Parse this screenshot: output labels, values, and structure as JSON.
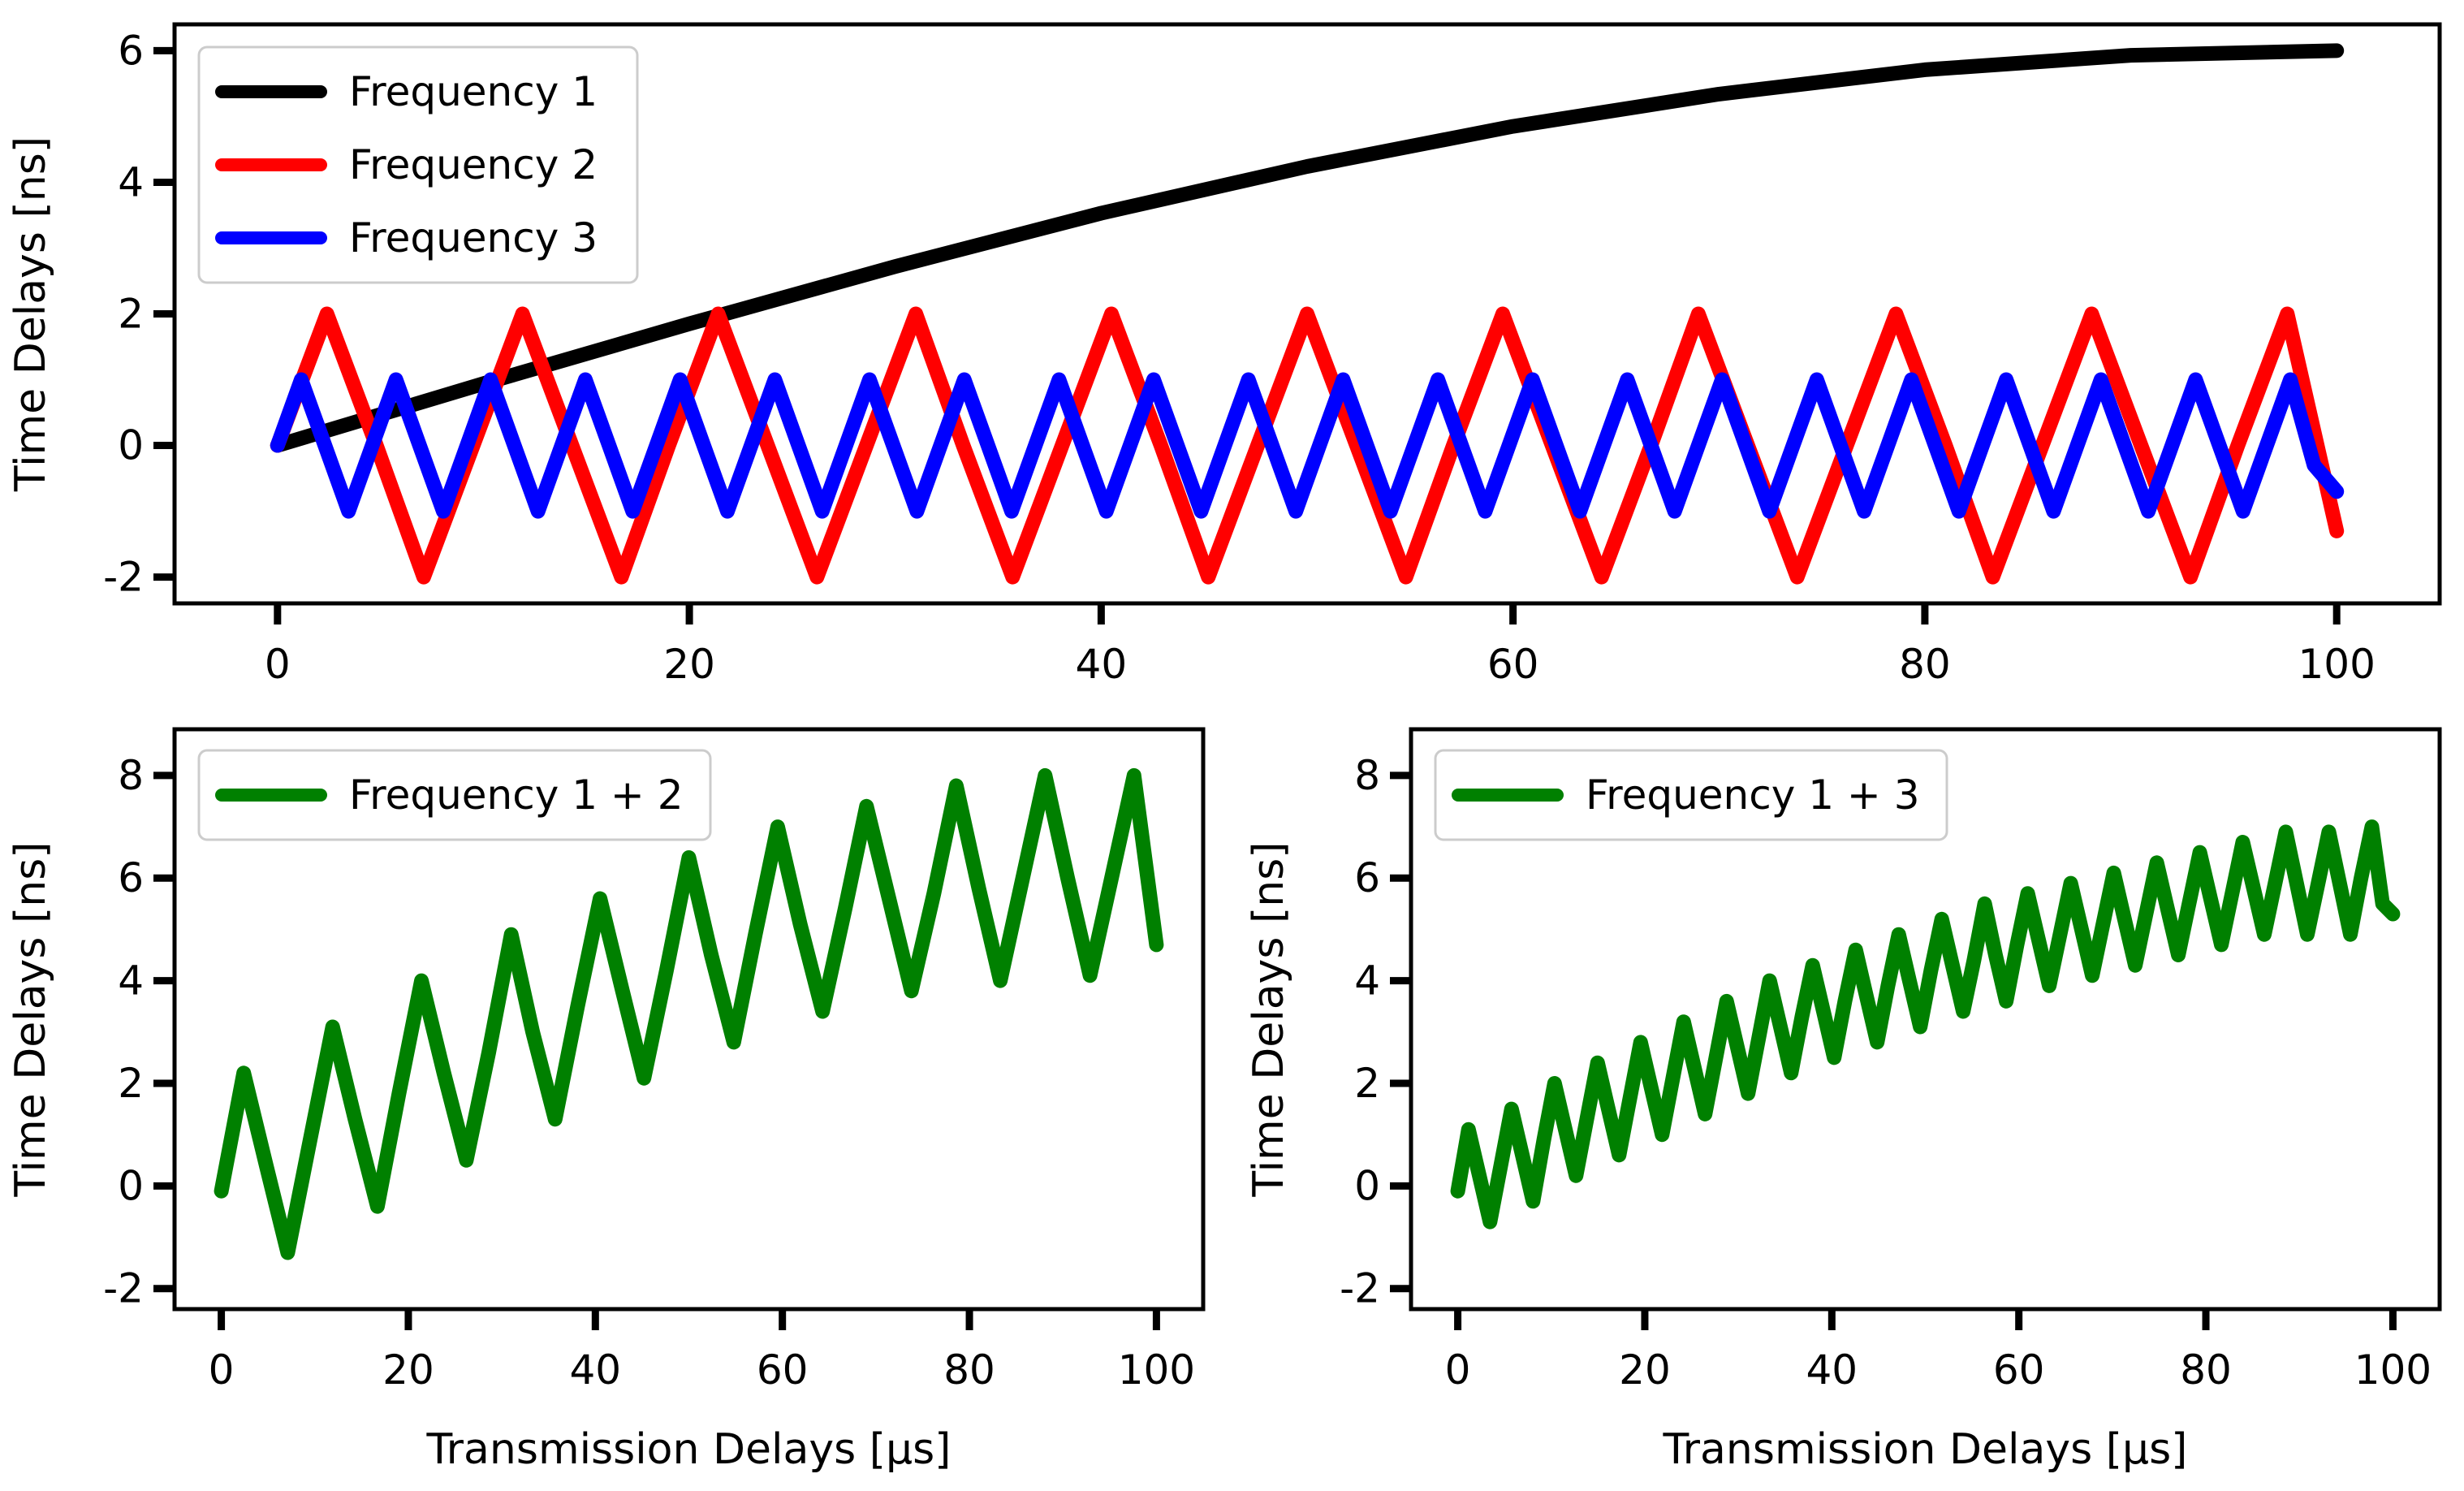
{
  "chart_data": [
    {
      "type": "line",
      "title": "",
      "xlabel": "Transmission Delays [µs]",
      "ylabel": "Time Delays [ns]",
      "xlim": [
        -5,
        105
      ],
      "ylim": [
        -2.4,
        6.4
      ],
      "xticks": [
        0,
        20,
        40,
        60,
        80,
        100
      ],
      "yticks": [
        -2,
        0,
        2,
        4,
        6
      ],
      "xtick_labels": [
        "0",
        "20",
        "40",
        "60",
        "80",
        "100"
      ],
      "ytick_labels": [
        "-2",
        "0",
        "2",
        "4",
        "6"
      ],
      "legend_position": "upper-left",
      "series": [
        {
          "name": "Frequency 1",
          "color": "#000000",
          "x": [
            0,
            10,
            20,
            30,
            40,
            50,
            60,
            70,
            80,
            90,
            100
          ],
          "y": [
            0.0,
            0.94,
            1.85,
            2.72,
            3.53,
            4.24,
            4.85,
            5.34,
            5.71,
            5.93,
            6.0
          ]
        },
        {
          "name": "Frequency 2",
          "color": "#ff0000",
          "x": [
            0,
            2.4,
            4.8,
            7.1,
            9.5,
            11.9,
            14.3,
            16.7,
            19.0,
            21.4,
            23.8,
            26.2,
            28.6,
            31.0,
            33.3,
            35.7,
            38.1,
            40.5,
            42.9,
            45.2,
            47.6,
            50.0,
            52.4,
            54.8,
            57.1,
            59.5,
            61.9,
            64.3,
            66.7,
            69.0,
            71.4,
            73.8,
            76.2,
            78.6,
            81.0,
            83.3,
            85.7,
            88.1,
            90.5,
            92.9,
            95.2,
            97.6,
            100
          ],
          "y": [
            0,
            2,
            0,
            -2,
            0,
            2,
            0,
            -2,
            0,
            2,
            0,
            -2,
            0,
            2,
            0,
            -2,
            0,
            2,
            0,
            -2,
            0,
            2,
            0,
            -2,
            0,
            2,
            0,
            -2,
            0,
            2,
            0,
            -2,
            0,
            2,
            0,
            -2,
            0,
            2,
            0,
            -2,
            0,
            2,
            -1.3
          ]
        },
        {
          "name": "Frequency 3",
          "color": "#0000ff",
          "x": [
            0,
            1.15,
            2.3,
            3.45,
            4.6,
            5.75,
            6.9,
            8.05,
            9.2,
            10.35,
            11.5,
            12.65,
            13.8,
            14.95,
            16.1,
            17.25,
            18.4,
            19.55,
            20.7,
            21.85,
            23.0,
            24.15,
            25.3,
            26.45,
            27.6,
            28.75,
            29.9,
            31.05,
            32.2,
            33.35,
            34.5,
            35.65,
            36.8,
            37.95,
            39.1,
            40.25,
            41.4,
            42.55,
            43.7,
            44.85,
            46.0,
            47.15,
            48.3,
            49.45,
            50.6,
            51.75,
            52.9,
            54.05,
            55.2,
            56.35,
            57.5,
            58.65,
            59.8,
            60.95,
            62.1,
            63.25,
            64.4,
            65.55,
            66.7,
            67.85,
            69.0,
            70.15,
            71.3,
            72.45,
            73.6,
            74.75,
            75.9,
            77.05,
            78.2,
            79.35,
            80.5,
            81.65,
            82.8,
            83.95,
            85.1,
            86.25,
            87.4,
            88.55,
            89.7,
            90.85,
            92.0,
            93.15,
            94.3,
            95.45,
            96.6,
            97.75,
            98.9,
            100
          ],
          "y": [
            0,
            1,
            0,
            -1,
            0,
            1,
            0,
            -1,
            0,
            1,
            0,
            -1,
            0,
            1,
            0,
            -1,
            0,
            1,
            0,
            -1,
            0,
            1,
            0,
            -1,
            0,
            1,
            0,
            -1,
            0,
            1,
            0,
            -1,
            0,
            1,
            0,
            -1,
            0,
            1,
            0,
            -1,
            0,
            1,
            0,
            -1,
            0,
            1,
            0,
            -1,
            0,
            1,
            0,
            -1,
            0,
            1,
            0,
            -1,
            0,
            1,
            0,
            -1,
            0,
            1,
            0,
            -1,
            0,
            1,
            0,
            -1,
            0,
            1,
            0,
            -1,
            0,
            1,
            0,
            -1,
            0,
            1,
            0,
            -1,
            0,
            1,
            0,
            -1,
            0,
            1,
            -0.3,
            -0.7
          ]
        }
      ]
    },
    {
      "type": "line",
      "title": "",
      "xlabel": "Transmission Delays [µs]",
      "ylabel": "Time Delays [ns]",
      "xlim": [
        -5,
        105
      ],
      "ylim": [
        -2.4,
        8.9
      ],
      "xticks": [
        0,
        20,
        40,
        60,
        80,
        100
      ],
      "yticks": [
        -2,
        0,
        2,
        4,
        6,
        8
      ],
      "xtick_labels": [
        "0",
        "20",
        "40",
        "60",
        "80",
        "100"
      ],
      "ytick_labels": [
        "-2",
        "0",
        "2",
        "4",
        "6",
        "8"
      ],
      "legend_position": "upper-left",
      "series": [
        {
          "name": "Frequency 1 + 2",
          "color": "#008000",
          "x": [
            0,
            2.4,
            4.8,
            7.1,
            9.5,
            11.9,
            14.3,
            16.7,
            19.0,
            21.4,
            23.8,
            26.2,
            28.6,
            31.0,
            33.3,
            35.7,
            38.1,
            40.5,
            42.9,
            45.2,
            47.6,
            50.0,
            52.4,
            54.8,
            57.1,
            59.5,
            61.9,
            64.3,
            66.7,
            69.0,
            71.4,
            73.8,
            76.2,
            78.6,
            81.0,
            83.3,
            85.7,
            88.1,
            90.5,
            92.9,
            95.2,
            97.6,
            100
          ],
          "y": [
            -0.1,
            2.2,
            0.4,
            -1.3,
            0.9,
            3.1,
            1.3,
            -0.4,
            1.8,
            4.0,
            2.2,
            0.5,
            2.6,
            4.9,
            3.0,
            1.3,
            3.5,
            5.6,
            3.8,
            2.1,
            4.2,
            6.4,
            4.5,
            2.8,
            4.9,
            7.0,
            5.1,
            3.4,
            5.4,
            7.4,
            5.6,
            3.8,
            5.7,
            7.8,
            5.8,
            4.0,
            6.0,
            8.0,
            6.0,
            4.1,
            6.0,
            8.0,
            4.7
          ]
        }
      ]
    },
    {
      "type": "line",
      "title": "",
      "xlabel": "Transmission Delays [µs]",
      "ylabel": "Time Delays [ns]",
      "xlim": [
        -5,
        105
      ],
      "ylim": [
        -2.4,
        8.9
      ],
      "xticks": [
        0,
        20,
        40,
        60,
        80,
        100
      ],
      "yticks": [
        -2,
        0,
        2,
        4,
        6,
        8
      ],
      "xtick_labels": [
        "0",
        "20",
        "40",
        "60",
        "80",
        "100"
      ],
      "ytick_labels": [
        "-2",
        "0",
        "2",
        "4",
        "6",
        "8"
      ],
      "legend_position": "upper-left",
      "series": [
        {
          "name": "Frequency 1 + 3",
          "color": "#008000",
          "x": [
            0,
            1.15,
            2.3,
            3.45,
            4.6,
            5.75,
            6.9,
            8.05,
            9.2,
            10.35,
            11.5,
            12.65,
            13.8,
            14.95,
            16.1,
            17.25,
            18.4,
            19.55,
            20.7,
            21.85,
            23.0,
            24.15,
            25.3,
            26.45,
            27.6,
            28.75,
            29.9,
            31.05,
            32.2,
            33.35,
            34.5,
            35.65,
            36.8,
            37.95,
            39.1,
            40.25,
            41.4,
            42.55,
            43.7,
            44.85,
            46.0,
            47.15,
            48.3,
            49.45,
            50.6,
            51.75,
            52.9,
            54.05,
            55.2,
            56.35,
            57.5,
            58.65,
            59.8,
            60.95,
            62.1,
            63.25,
            64.4,
            65.55,
            66.7,
            67.85,
            69.0,
            70.15,
            71.3,
            72.45,
            73.6,
            74.75,
            75.9,
            77.05,
            78.2,
            79.35,
            80.5,
            81.65,
            82.8,
            83.95,
            85.1,
            86.25,
            87.4,
            88.55,
            89.7,
            90.85,
            92.0,
            93.15,
            94.3,
            95.45,
            96.6,
            97.75,
            98.9,
            100
          ],
          "y": [
            -0.1,
            1.1,
            0.2,
            -0.7,
            0.4,
            1.5,
            0.6,
            -0.3,
            0.9,
            2.0,
            1.1,
            0.2,
            1.3,
            2.4,
            1.5,
            0.6,
            1.7,
            2.8,
            1.9,
            1.0,
            2.1,
            3.2,
            2.3,
            1.4,
            2.5,
            3.6,
            2.7,
            1.8,
            2.9,
            4.0,
            3.1,
            2.2,
            3.3,
            4.3,
            3.4,
            2.5,
            3.6,
            4.6,
            3.7,
            2.8,
            3.9,
            4.9,
            4.0,
            3.1,
            4.2,
            5.2,
            4.3,
            3.4,
            4.4,
            5.5,
            4.5,
            3.6,
            4.7,
            5.7,
            4.8,
            3.9,
            4.9,
            5.9,
            5.0,
            4.1,
            5.1,
            6.1,
            5.2,
            4.3,
            5.3,
            6.3,
            5.4,
            4.5,
            5.5,
            6.5,
            5.6,
            4.7,
            5.7,
            6.7,
            5.8,
            4.9,
            5.9,
            6.9,
            5.9,
            4.9,
            5.9,
            6.9,
            5.9,
            4.9,
            6.0,
            7.0,
            5.5,
            5.3
          ]
        }
      ]
    }
  ]
}
